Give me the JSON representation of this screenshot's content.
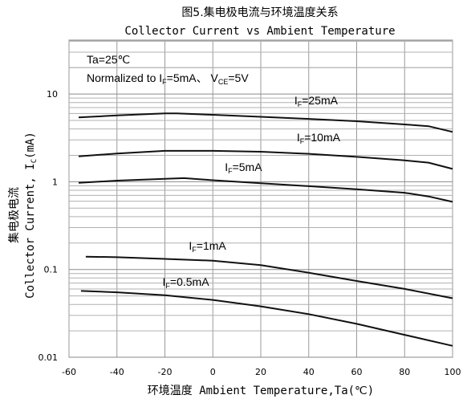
{
  "chart_data": {
    "type": "line",
    "title": "图5.集电极电流与环境温度关系",
    "subtitle": "Collector Current vs Ambient Temperature",
    "xlabel": "环境温度 Ambient Temperature,Ta(℃)",
    "ylabel_cn": "集电极电流",
    "ylabel_en_pre": "Collector Current, I",
    "ylabel_en_sub": "C",
    "ylabel_en_post": "(mA)",
    "xlim": [
      -60,
      100
    ],
    "ylim": [
      0.01,
      50
    ],
    "yscale": "log",
    "grid": true,
    "x_ticks": [
      "-60",
      "-40",
      "-20",
      "0",
      "20",
      "40",
      "60",
      "80",
      "100"
    ],
    "y_ticks": [
      "0.01",
      "0.1",
      "1",
      "10"
    ],
    "annotations": {
      "line1": "Ta=25℃",
      "line2_pre": "Normalized to I",
      "line2_sub1": "F",
      "line2_mid": "=5mA、 V",
      "line2_sub2": "CE",
      "line2_post": "=5V"
    },
    "series": [
      {
        "name": "IF=25mA",
        "label_main": "I",
        "label_sub": "F",
        "label_rest": "=25mA",
        "x": [
          -56,
          -40,
          -20,
          -15,
          0,
          20,
          40,
          60,
          80,
          90,
          100
        ],
        "y": [
          5.4,
          5.7,
          6.0,
          6.0,
          5.8,
          5.5,
          5.2,
          4.9,
          4.5,
          4.3,
          3.7
        ]
      },
      {
        "name": "IF=10mA",
        "label_main": "I",
        "label_sub": "F",
        "label_rest": "=10mA",
        "x": [
          -56,
          -40,
          -20,
          0,
          20,
          40,
          60,
          80,
          90,
          100
        ],
        "y": [
          1.95,
          2.1,
          2.25,
          2.25,
          2.2,
          2.08,
          1.92,
          1.75,
          1.65,
          1.4
        ]
      },
      {
        "name": "IF=5mA",
        "label_main": "I",
        "label_sub": "F",
        "label_rest": "=5mA",
        "x": [
          -56,
          -40,
          -20,
          -12,
          0,
          20,
          40,
          60,
          80,
          90,
          100
        ],
        "y": [
          0.97,
          1.03,
          1.08,
          1.1,
          1.04,
          0.96,
          0.89,
          0.82,
          0.75,
          0.68,
          0.59
        ]
      },
      {
        "name": "IF=1mA",
        "label_main": "I",
        "label_sub": "F",
        "label_rest": "=1mA",
        "x": [
          -53,
          -40,
          -20,
          0,
          20,
          40,
          60,
          80,
          100
        ],
        "y": [
          0.14,
          0.138,
          0.132,
          0.126,
          0.112,
          0.092,
          0.074,
          0.06,
          0.047
        ]
      },
      {
        "name": "IF=0.5mA",
        "label_main": "I",
        "label_sub": "F",
        "label_rest": "=0.5mA",
        "x": [
          -55,
          -40,
          -20,
          0,
          20,
          40,
          60,
          80,
          100
        ],
        "y": [
          0.057,
          0.055,
          0.051,
          0.045,
          0.038,
          0.031,
          0.024,
          0.018,
          0.0135
        ]
      }
    ]
  }
}
